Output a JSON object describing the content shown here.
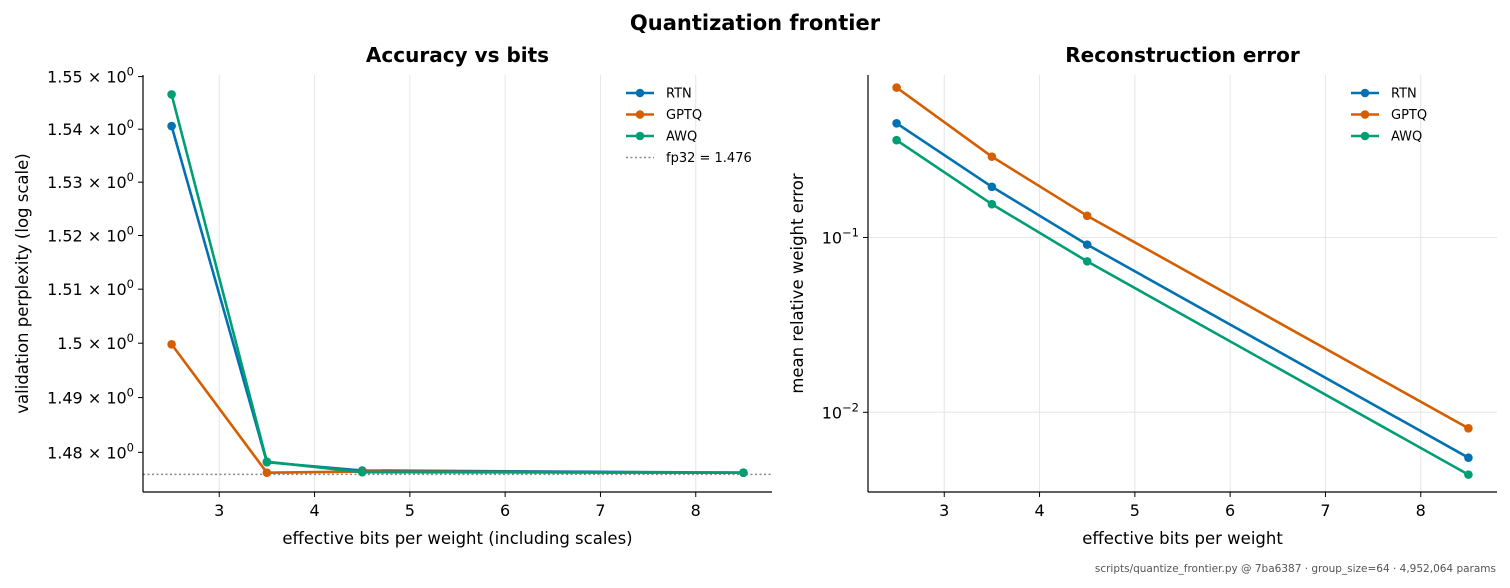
{
  "suptitle": "Quantization frontier",
  "footer": "scripts/quantize_frontier.py @ 7ba6387 · group_size=64 · 4,952,064 params",
  "colors": {
    "RTN": "#0072B2",
    "GPTQ": "#D55E00",
    "AWQ": "#009E73",
    "reference": "#888888",
    "grid": "#e6e6e6"
  },
  "chart_data": [
    {
      "type": "line",
      "title": "Accuracy vs bits",
      "xlabel": "effective bits per weight (including scales)",
      "ylabel": "validation perplexity (log scale)",
      "yscale": "log",
      "xlim": [
        2.2,
        8.8
      ],
      "ylim": [
        1.4728,
        1.5503
      ],
      "xticks": [
        3,
        4,
        5,
        6,
        7,
        8
      ],
      "yticks": [
        {
          "value": 1.48,
          "mantissa": "1.48",
          "label": "1.48 × 10^0"
        },
        {
          "value": 1.49,
          "mantissa": "1.49",
          "label": "1.49 × 10^0"
        },
        {
          "value": 1.5,
          "mantissa": "1.5",
          "label": "1.5 × 10^0"
        },
        {
          "value": 1.51,
          "mantissa": "1.51",
          "label": "1.51 × 10^0"
        },
        {
          "value": 1.52,
          "mantissa": "1.52",
          "label": "1.52 × 10^0"
        },
        {
          "value": 1.53,
          "mantissa": "1.53",
          "label": "1.53 × 10^0"
        },
        {
          "value": 1.54,
          "mantissa": "1.54",
          "label": "1.54 × 10^0"
        },
        {
          "value": 1.55,
          "mantissa": "1.55",
          "label": "1.55 × 10^0"
        }
      ],
      "grid": "x",
      "legend_position": "top-right",
      "x": [
        2.5,
        3.5,
        4.5,
        8.5
      ],
      "series": [
        {
          "name": "RTN",
          "values": [
            1.5406,
            1.4782,
            1.4767,
            1.4763
          ]
        },
        {
          "name": "GPTQ",
          "values": [
            1.4998,
            1.4763,
            1.4765,
            1.4763
          ]
        },
        {
          "name": "AWQ",
          "values": [
            1.5466,
            1.4783,
            1.4764,
            1.4763
          ]
        }
      ],
      "reference_line": {
        "value": 1.476,
        "label": "fp32 = 1.476"
      }
    },
    {
      "type": "line",
      "title": "Reconstruction error",
      "xlabel": "effective bits per weight",
      "ylabel": "mean relative weight error",
      "yscale": "log",
      "xlim": [
        2.2,
        8.8
      ],
      "ylim": [
        0.0035,
        0.85
      ],
      "xticks": [
        3,
        4,
        5,
        6,
        7,
        8
      ],
      "yticks": [
        {
          "value": 0.1,
          "mantissa": "10",
          "exp": "−1",
          "label": "10^−1"
        },
        {
          "value": 0.01,
          "mantissa": "10",
          "exp": "−2",
          "label": "10^−2"
        }
      ],
      "grid": "both",
      "legend_position": "top-right",
      "x": [
        2.5,
        3.5,
        4.5,
        8.5
      ],
      "series": [
        {
          "name": "RTN",
          "values": [
            0.45,
            0.195,
            0.091,
            0.0055
          ]
        },
        {
          "name": "GPTQ",
          "values": [
            0.72,
            0.29,
            0.133,
            0.0081
          ]
        },
        {
          "name": "AWQ",
          "values": [
            0.36,
            0.155,
            0.073,
            0.0044
          ]
        }
      ]
    }
  ]
}
